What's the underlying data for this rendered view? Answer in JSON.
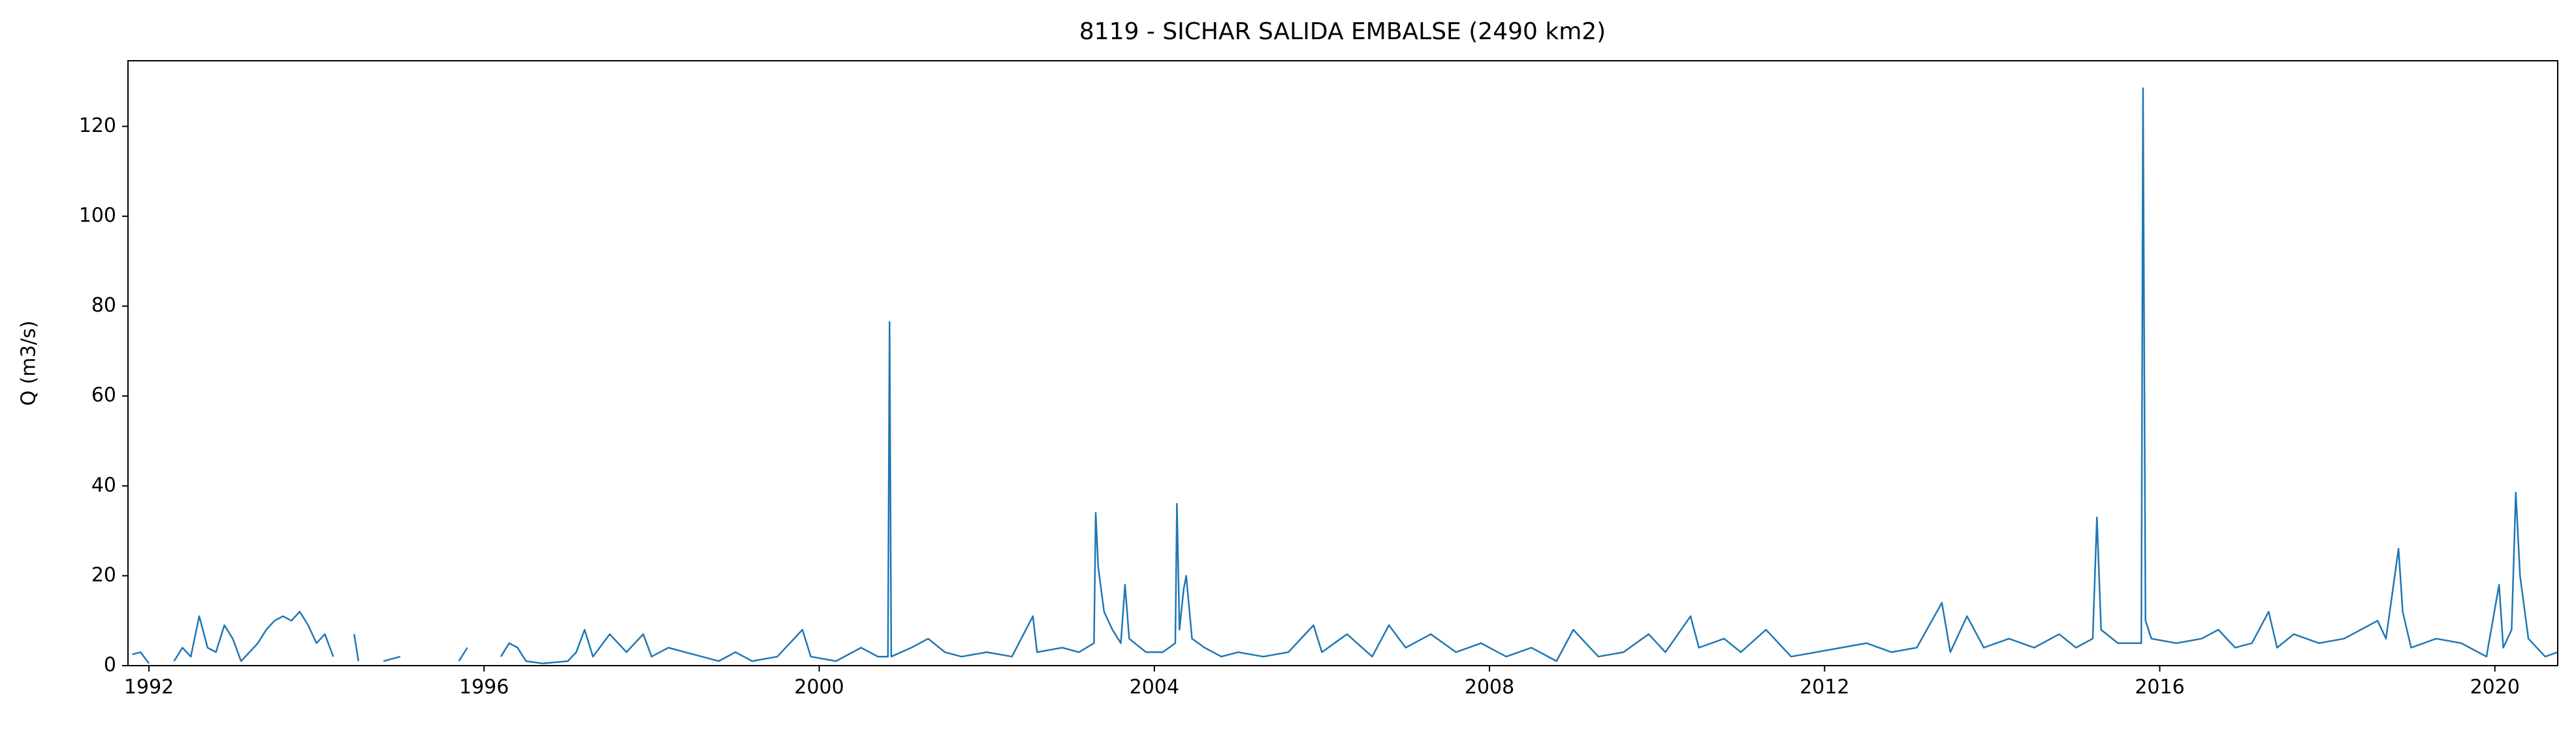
{
  "chart_data": {
    "type": "line",
    "title": "8119 - SICHAR SALIDA EMBALSE (2490 km2)",
    "y_label": "Q (m3/s)",
    "color": "#1f77b4",
    "x": [
      1991.8,
      1991.9,
      1992.0,
      1992.1,
      1992.3,
      1992.4,
      1992.5,
      1992.6,
      1992.7,
      1992.8,
      1992.9,
      1993.0,
      1993.1,
      1993.2,
      1993.3,
      1993.4,
      1993.5,
      1993.6,
      1993.7,
      1993.8,
      1993.9,
      1994.0,
      1994.1,
      1994.2,
      1994.3,
      1994.45,
      1994.5,
      1994.55,
      1994.8,
      1995.0,
      1995.1,
      1995.7,
      1995.8,
      1995.85,
      1996.2,
      1996.3,
      1996.4,
      1996.5,
      1996.7,
      1997.0,
      1997.1,
      1997.2,
      1997.3,
      1997.5,
      1997.7,
      1997.9,
      1998.0,
      1998.2,
      1998.4,
      1998.6,
      1998.8,
      1999.0,
      1999.2,
      1999.5,
      1999.8,
      1999.9,
      2000.2,
      2000.5,
      2000.7,
      2000.82,
      2000.84,
      2000.86,
      2001.1,
      2001.3,
      2001.5,
      2001.7,
      2002.0,
      2002.3,
      2002.55,
      2002.6,
      2002.9,
      2003.1,
      2003.28,
      2003.3,
      2003.33,
      2003.4,
      2003.5,
      2003.6,
      2003.65,
      2003.7,
      2003.9,
      2004.1,
      2004.25,
      2004.27,
      2004.3,
      2004.35,
      2004.38,
      2004.45,
      2004.6,
      2004.8,
      2005.0,
      2005.3,
      2005.6,
      2005.9,
      2006.0,
      2006.3,
      2006.6,
      2006.8,
      2007.0,
      2007.3,
      2007.6,
      2007.9,
      2008.2,
      2008.5,
      2008.8,
      2009.0,
      2009.3,
      2009.6,
      2009.9,
      2010.1,
      2010.4,
      2010.5,
      2010.8,
      2011.0,
      2011.3,
      2011.6,
      2011.9,
      2012.2,
      2012.5,
      2012.8,
      2013.1,
      2013.4,
      2013.5,
      2013.7,
      2013.9,
      2014.2,
      2014.5,
      2014.8,
      2015.0,
      2015.2,
      2015.25,
      2015.3,
      2015.5,
      2015.78,
      2015.8,
      2015.83,
      2015.9,
      2016.2,
      2016.5,
      2016.7,
      2016.9,
      2017.1,
      2017.3,
      2017.4,
      2017.6,
      2017.9,
      2018.2,
      2018.5,
      2018.6,
      2018.7,
      2018.85,
      2018.9,
      2019.0,
      2019.3,
      2019.6,
      2019.9,
      2020.05,
      2020.1,
      2020.2,
      2020.25,
      2020.3,
      2020.4,
      2020.6,
      2020.75
    ],
    "values": [
      2.5,
      3,
      0.5,
      null,
      1,
      4,
      2,
      11,
      4,
      3,
      9,
      6,
      1,
      3,
      5,
      8,
      10,
      11,
      10,
      12,
      9,
      5,
      7,
      2,
      null,
      7,
      1,
      null,
      1,
      2,
      null,
      1,
      4,
      null,
      2,
      5,
      4,
      1,
      0.5,
      1,
      3,
      8,
      2,
      7,
      3,
      7,
      2,
      4,
      3,
      2,
      1,
      3,
      1,
      2,
      8,
      2,
      1,
      4,
      2,
      2,
      76.5,
      2,
      4,
      6,
      3,
      2,
      3,
      2,
      11,
      3,
      4,
      3,
      5,
      34,
      22,
      12,
      8,
      5,
      18,
      6,
      3,
      3,
      5,
      36,
      8,
      17,
      20,
      6,
      4,
      2,
      3,
      2,
      3,
      9,
      3,
      7,
      2,
      9,
      4,
      7,
      3,
      5,
      2,
      4,
      1,
      8,
      2,
      3,
      7,
      3,
      11,
      4,
      6,
      3,
      8,
      2,
      3,
      4,
      5,
      3,
      4,
      14,
      3,
      11,
      4,
      6,
      4,
      7,
      4,
      6,
      33,
      8,
      5,
      5,
      128.5,
      10,
      6,
      5,
      6,
      8,
      4,
      5,
      12,
      4,
      7,
      5,
      6,
      9,
      10,
      6,
      26,
      12,
      4,
      6,
      5,
      2,
      18,
      4,
      8,
      38.5,
      20,
      6,
      2,
      3
    ],
    "xlim": [
      1991.75,
      2020.75
    ],
    "xticks": [
      1992,
      1996,
      2000,
      2004,
      2008,
      2012,
      2016,
      2020
    ],
    "ylim": [
      0,
      134.6
    ],
    "yticks": [
      0,
      20,
      40,
      60,
      80,
      100,
      120
    ],
    "grid": false
  }
}
